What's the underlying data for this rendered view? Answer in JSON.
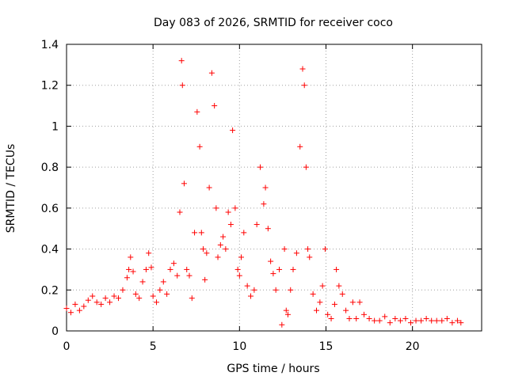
{
  "chart_data": {
    "type": "scatter",
    "title": "Day 083 of 2026, SRMTID for receiver coco",
    "xlabel": "GPS time / hours",
    "ylabel": "SRMTID / TECUs",
    "xlim": [
      0,
      24
    ],
    "ylim": [
      0,
      1.4
    ],
    "x_ticks": [
      "0",
      "5",
      "10",
      "15",
      "20"
    ],
    "y_ticks": [
      "0",
      "0.2",
      "0.4",
      "0.6",
      "0.8",
      "1",
      "1.2",
      "1.4"
    ],
    "grid": true,
    "marker": "+",
    "marker_color": "#ff0000",
    "series": [
      {
        "name": "SRMTID",
        "x": [
          0.0,
          0.25,
          0.5,
          0.75,
          1.0,
          1.25,
          1.5,
          1.75,
          2.0,
          2.25,
          2.5,
          2.75,
          3.0,
          3.25,
          3.5,
          3.6,
          3.7,
          3.85,
          4.0,
          4.2,
          4.4,
          4.6,
          4.75,
          4.9,
          5.0,
          5.2,
          5.4,
          5.6,
          5.8,
          6.0,
          6.2,
          6.4,
          6.55,
          6.65,
          6.7,
          6.8,
          6.95,
          7.1,
          7.25,
          7.4,
          7.55,
          7.7,
          7.8,
          7.9,
          8.0,
          8.1,
          8.25,
          8.4,
          8.55,
          8.65,
          8.75,
          8.9,
          9.05,
          9.2,
          9.35,
          9.5,
          9.6,
          9.75,
          9.9,
          10.0,
          10.1,
          10.25,
          10.45,
          10.65,
          10.85,
          11.0,
          11.2,
          11.4,
          11.5,
          11.65,
          11.8,
          11.95,
          12.1,
          12.3,
          12.45,
          12.6,
          12.7,
          12.8,
          12.95,
          13.1,
          13.3,
          13.5,
          13.65,
          13.75,
          13.85,
          13.95,
          14.05,
          14.25,
          14.45,
          14.65,
          14.8,
          14.95,
          15.1,
          15.3,
          15.5,
          15.6,
          15.75,
          15.95,
          16.15,
          16.35,
          16.55,
          16.75,
          16.95,
          17.2,
          17.5,
          17.8,
          18.1,
          18.4,
          18.7,
          19.0,
          19.3,
          19.6,
          19.9,
          20.2,
          20.5,
          20.8,
          21.1,
          21.4,
          21.7,
          22.0,
          22.3,
          22.6,
          22.8
        ],
        "y": [
          0.11,
          0.09,
          0.13,
          0.1,
          0.12,
          0.15,
          0.17,
          0.14,
          0.13,
          0.16,
          0.14,
          0.17,
          0.16,
          0.2,
          0.26,
          0.3,
          0.36,
          0.29,
          0.18,
          0.16,
          0.24,
          0.3,
          0.38,
          0.31,
          0.17,
          0.14,
          0.2,
          0.24,
          0.18,
          0.3,
          0.33,
          0.27,
          0.58,
          1.32,
          1.2,
          0.72,
          0.3,
          0.27,
          0.16,
          0.48,
          1.07,
          0.9,
          0.48,
          0.4,
          0.25,
          0.38,
          0.7,
          1.26,
          1.1,
          0.6,
          0.36,
          0.42,
          0.46,
          0.4,
          0.58,
          0.52,
          0.98,
          0.6,
          0.3,
          0.27,
          0.36,
          0.48,
          0.22,
          0.17,
          0.2,
          0.52,
          0.8,
          0.62,
          0.7,
          0.5,
          0.34,
          0.28,
          0.2,
          0.3,
          0.03,
          0.4,
          0.1,
          0.08,
          0.2,
          0.3,
          0.38,
          0.9,
          1.28,
          1.2,
          0.8,
          0.4,
          0.36,
          0.18,
          0.1,
          0.14,
          0.22,
          0.4,
          0.08,
          0.06,
          0.13,
          0.3,
          0.22,
          0.18,
          0.1,
          0.06,
          0.14,
          0.06,
          0.14,
          0.08,
          0.06,
          0.05,
          0.05,
          0.07,
          0.04,
          0.06,
          0.05,
          0.06,
          0.04,
          0.05,
          0.05,
          0.06,
          0.05,
          0.05,
          0.05,
          0.06,
          0.04,
          0.05,
          0.04
        ]
      }
    ]
  }
}
